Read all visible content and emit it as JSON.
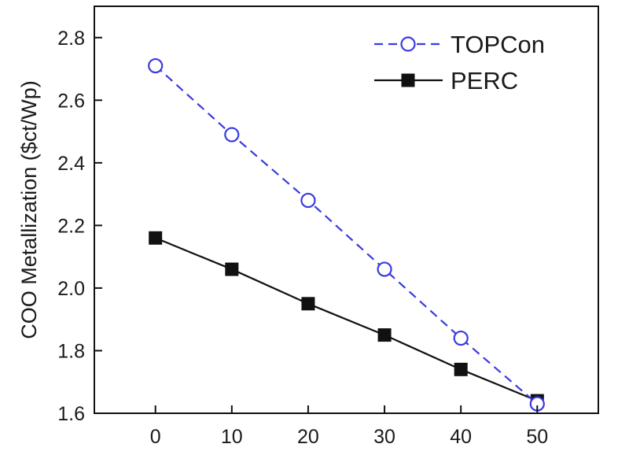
{
  "chart_data": {
    "type": "line",
    "title": "",
    "xlabel": "",
    "ylabel": "COO Metallization ($ct/Wp)",
    "x": [
      0,
      10,
      20,
      30,
      40,
      50
    ],
    "xlim": [
      -8,
      58
    ],
    "ylim": [
      1.6,
      2.9
    ],
    "xticks": [
      0,
      10,
      20,
      30,
      40,
      50
    ],
    "yticks": [
      1.6,
      1.8,
      2.0,
      2.2,
      2.4,
      2.6,
      2.8
    ],
    "ytick_labels": [
      "1.6",
      "1.8",
      "2.0",
      "2.2",
      "2.4",
      "2.6",
      "2.8"
    ],
    "xtick_labels": [
      "0",
      "10",
      "20",
      "30",
      "40",
      "50"
    ],
    "grid": false,
    "legend_position": "top-right",
    "series": [
      {
        "name": "TOPCon",
        "values": [
          2.71,
          2.49,
          2.28,
          2.06,
          1.84,
          1.63
        ],
        "color": "#3a3ae0",
        "line_style": "dashed",
        "marker": "open-circle"
      },
      {
        "name": "PERC",
        "values": [
          2.16,
          2.06,
          1.95,
          1.85,
          1.74,
          1.64
        ],
        "color": "#111111",
        "line_style": "solid",
        "marker": "filled-square"
      }
    ]
  }
}
